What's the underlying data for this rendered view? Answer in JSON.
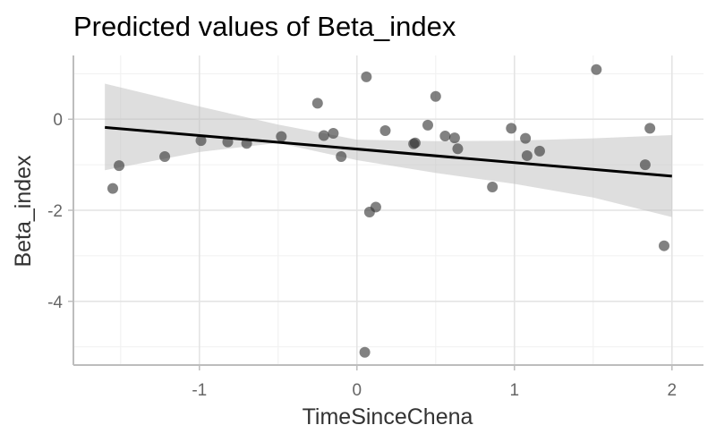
{
  "chart_data": {
    "type": "scatter",
    "title": "Predicted values of Beta_index",
    "xlabel": "TimeSinceChena",
    "ylabel": "Beta_index",
    "xlim": [
      -1.8,
      2.2
    ],
    "ylim": [
      -5.4,
      1.4
    ],
    "x_ticks": [
      -1,
      0,
      1,
      2
    ],
    "x_tick_labels": [
      "-1",
      "0",
      "1",
      "2"
    ],
    "y_ticks": [
      -4,
      -2,
      0
    ],
    "y_tick_labels": [
      "-4",
      "-2",
      "0"
    ],
    "grid": true,
    "colors": {
      "points": "#333333",
      "fit_line": "#000000",
      "ci_band": "#bdbdbd"
    },
    "fit_line": {
      "x": [
        -1.6,
        2.0
      ],
      "y": [
        -0.18,
        -1.25
      ]
    },
    "confidence_band": {
      "x": [
        -1.6,
        -1.0,
        -0.5,
        0.0,
        0.5,
        1.0,
        1.5,
        2.0
      ],
      "upper": [
        0.78,
        0.28,
        -0.12,
        -0.45,
        -0.48,
        -0.47,
        -0.42,
        -0.35
      ],
      "lower": [
        -1.12,
        -0.72,
        -0.52,
        -0.9,
        -1.18,
        -1.42,
        -1.72,
        -2.15
      ]
    },
    "points": [
      {
        "x": -1.55,
        "y": -1.52
      },
      {
        "x": -1.51,
        "y": -1.02
      },
      {
        "x": -1.22,
        "y": -0.82
      },
      {
        "x": -0.99,
        "y": -0.47
      },
      {
        "x": -0.82,
        "y": -0.5
      },
      {
        "x": -0.7,
        "y": -0.53
      },
      {
        "x": -0.48,
        "y": -0.38
      },
      {
        "x": -0.25,
        "y": 0.35
      },
      {
        "x": -0.21,
        "y": -0.36
      },
      {
        "x": -0.15,
        "y": -0.31
      },
      {
        "x": -0.1,
        "y": -0.82
      },
      {
        "x": 0.05,
        "y": -5.12
      },
      {
        "x": 0.06,
        "y": 0.93
      },
      {
        "x": 0.08,
        "y": -2.04
      },
      {
        "x": 0.12,
        "y": -1.93
      },
      {
        "x": 0.18,
        "y": -0.25
      },
      {
        "x": 0.36,
        "y": -0.54
      },
      {
        "x": 0.37,
        "y": -0.52
      },
      {
        "x": 0.45,
        "y": -0.13
      },
      {
        "x": 0.5,
        "y": 0.5
      },
      {
        "x": 0.56,
        "y": -0.37
      },
      {
        "x": 0.62,
        "y": -0.41
      },
      {
        "x": 0.64,
        "y": -0.65
      },
      {
        "x": 0.86,
        "y": -1.49
      },
      {
        "x": 0.98,
        "y": -0.2
      },
      {
        "x": 1.07,
        "y": -0.42
      },
      {
        "x": 1.08,
        "y": -0.8
      },
      {
        "x": 1.16,
        "y": -0.7
      },
      {
        "x": 1.52,
        "y": 1.09
      },
      {
        "x": 1.83,
        "y": -1.0
      },
      {
        "x": 1.86,
        "y": -0.2
      },
      {
        "x": 1.95,
        "y": -2.78
      }
    ]
  }
}
